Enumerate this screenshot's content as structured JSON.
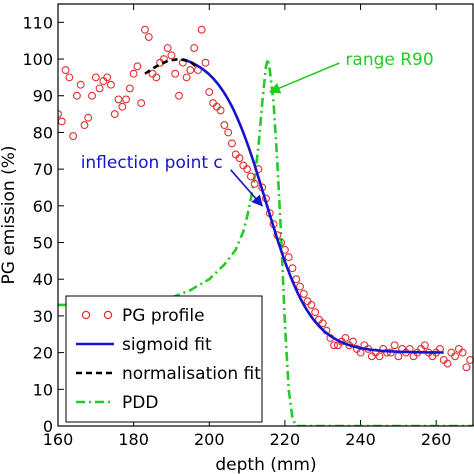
{
  "chart_data": {
    "type": "line",
    "xlabel": "depth (mm)",
    "ylabel": "PG emission (%)",
    "xlim": [
      160,
      270
    ],
    "ylim": [
      0,
      115
    ],
    "xticks": [
      160,
      180,
      200,
      220,
      240,
      260
    ],
    "yticks": [
      0,
      10,
      20,
      30,
      40,
      50,
      60,
      70,
      80,
      90,
      100,
      110
    ],
    "grid": false,
    "legend_position": "bottom-left",
    "annotations": [
      {
        "text": "range R90",
        "text_at": [
          236,
          100
        ],
        "arrow_to": [
          215.5,
          91
        ]
      },
      {
        "text": "inflection point c",
        "text_at": [
          166,
          72
        ],
        "arrow_to": [
          214,
          60
        ]
      }
    ],
    "colors": {
      "profile": "#e03030",
      "sigmoid": "#1414cc",
      "normalisation": "#000000",
      "pdd": "#22cc22"
    },
    "series": [
      {
        "name": "PG profile",
        "style": "markers",
        "points": [
          [
            160,
            85
          ],
          [
            161,
            83
          ],
          [
            162,
            97
          ],
          [
            163,
            95
          ],
          [
            164,
            79
          ],
          [
            165,
            90
          ],
          [
            166,
            93
          ],
          [
            167,
            82
          ],
          [
            168,
            84
          ],
          [
            169,
            90
          ],
          [
            170,
            95
          ],
          [
            171,
            92
          ],
          [
            172,
            94
          ],
          [
            173,
            95
          ],
          [
            174,
            93
          ],
          [
            175,
            85
          ],
          [
            176,
            89
          ],
          [
            177,
            87
          ],
          [
            178,
            89
          ],
          [
            179,
            92
          ],
          [
            180,
            96
          ],
          [
            181,
            98
          ],
          [
            182,
            88
          ],
          [
            183,
            108
          ],
          [
            184,
            106
          ],
          [
            185,
            96
          ],
          [
            186,
            95
          ],
          [
            187,
            99
          ],
          [
            188,
            100
          ],
          [
            189,
            103
          ],
          [
            190,
            101
          ],
          [
            191,
            96
          ],
          [
            192,
            90
          ],
          [
            193,
            99
          ],
          [
            194,
            95
          ],
          [
            195,
            97
          ],
          [
            196,
            103
          ],
          [
            197,
            97
          ],
          [
            198,
            108
          ],
          [
            199,
            99
          ],
          [
            200,
            91
          ],
          [
            201,
            88
          ],
          [
            202,
            87
          ],
          [
            203,
            86
          ],
          [
            204,
            82
          ],
          [
            205,
            80
          ],
          [
            206,
            77
          ],
          [
            207,
            74
          ],
          [
            208,
            73
          ],
          [
            209,
            71
          ],
          [
            210,
            70
          ],
          [
            211,
            68
          ],
          [
            212,
            66
          ],
          [
            213,
            70
          ],
          [
            214,
            65
          ],
          [
            215,
            62
          ],
          [
            216,
            58
          ],
          [
            217,
            55
          ],
          [
            218,
            52
          ],
          [
            219,
            50
          ],
          [
            220,
            48
          ],
          [
            221,
            46
          ],
          [
            222,
            43
          ],
          [
            223,
            40
          ],
          [
            224,
            38
          ],
          [
            225,
            36
          ],
          [
            226,
            34
          ],
          [
            227,
            33
          ],
          [
            228,
            31
          ],
          [
            229,
            29
          ],
          [
            230,
            28
          ],
          [
            231,
            26
          ],
          [
            232,
            24
          ],
          [
            233,
            22
          ],
          [
            234,
            22
          ],
          [
            235,
            23
          ],
          [
            236,
            24
          ],
          [
            237,
            22
          ],
          [
            238,
            23
          ],
          [
            239,
            21
          ],
          [
            240,
            20
          ],
          [
            241,
            22
          ],
          [
            242,
            21
          ],
          [
            243,
            19
          ],
          [
            244,
            20
          ],
          [
            245,
            19
          ],
          [
            246,
            21
          ],
          [
            247,
            20
          ],
          [
            248,
            20
          ],
          [
            249,
            22
          ],
          [
            250,
            19
          ],
          [
            251,
            21
          ],
          [
            252,
            20
          ],
          [
            253,
            21
          ],
          [
            254,
            19
          ],
          [
            255,
            20
          ],
          [
            256,
            21
          ],
          [
            257,
            22
          ],
          [
            258,
            20
          ],
          [
            259,
            19
          ],
          [
            260,
            20
          ],
          [
            261,
            21
          ],
          [
            262,
            18
          ],
          [
            263,
            17
          ],
          [
            264,
            20
          ],
          [
            265,
            19
          ],
          [
            266,
            21
          ],
          [
            267,
            20
          ],
          [
            268,
            16
          ],
          [
            269,
            18
          ]
        ]
      },
      {
        "name": "sigmoid fit",
        "style": "solid",
        "x_start": 193,
        "x_end": 262,
        "model": "sigmoid",
        "low": 20,
        "high": 102,
        "center": 215,
        "scale": 6
      },
      {
        "name": "normalisation fit",
        "style": "dashed",
        "points": [
          [
            183,
            96
          ],
          [
            186,
            98
          ],
          [
            189,
            99.5
          ],
          [
            192,
            100
          ],
          [
            195,
            99.3
          ],
          [
            197,
            97.5
          ]
        ]
      },
      {
        "name": "PDD",
        "style": "dashdot",
        "points": [
          [
            160,
            33
          ],
          [
            170,
            33
          ],
          [
            180,
            33
          ],
          [
            185,
            34
          ],
          [
            190,
            35
          ],
          [
            195,
            37
          ],
          [
            200,
            40
          ],
          [
            204,
            44
          ],
          [
            207,
            48
          ],
          [
            209,
            53
          ],
          [
            210,
            57
          ],
          [
            211,
            62
          ],
          [
            212,
            68
          ],
          [
            213,
            76
          ],
          [
            214,
            88
          ],
          [
            215,
            98
          ],
          [
            215.5,
            100
          ],
          [
            216,
            97
          ],
          [
            217,
            88
          ],
          [
            218,
            72
          ],
          [
            219,
            52
          ],
          [
            220,
            28
          ],
          [
            221,
            10
          ],
          [
            222,
            2
          ],
          [
            223,
            0
          ],
          [
            270,
            0
          ]
        ]
      }
    ]
  }
}
